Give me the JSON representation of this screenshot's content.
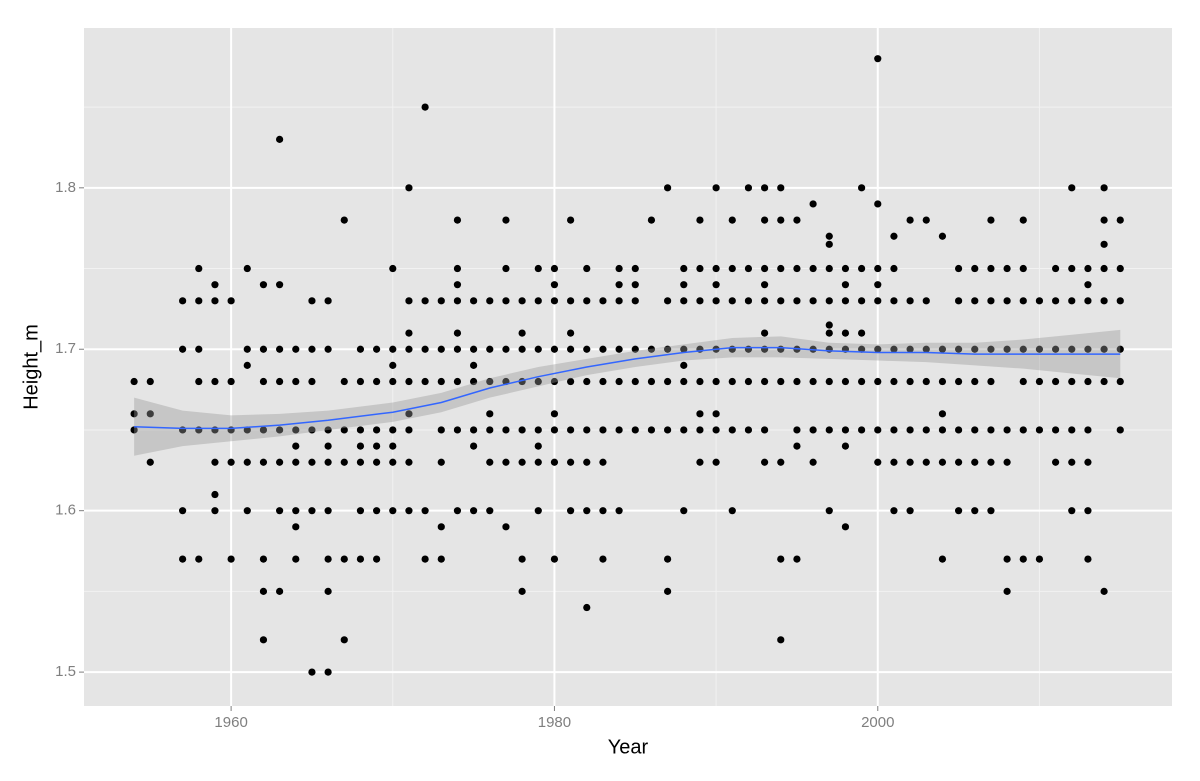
{
  "chart_data": {
    "type": "scatter",
    "x_label": "Year",
    "y_label": "Height_m",
    "xlim": [
      1950.9,
      2018.2
    ],
    "ylim": [
      1.479,
      1.899
    ],
    "xticks": [
      1960,
      1980,
      2000
    ],
    "yticks": [
      1.5,
      1.6,
      1.7,
      1.8
    ],
    "xminor": [
      1970,
      1990,
      2010
    ],
    "yminor": [
      1.55,
      1.65,
      1.75,
      1.85
    ],
    "grid": true,
    "color": "#000000",
    "x": [
      1954,
      1954,
      1954,
      1955,
      1955,
      1955,
      1957,
      1957,
      1957,
      1957,
      1957,
      1958,
      1958,
      1958,
      1958,
      1958,
      1958,
      1959,
      1959,
      1959,
      1959,
      1959,
      1959,
      1959,
      1960,
      1960,
      1960,
      1960,
      1960,
      1961,
      1961,
      1961,
      1961,
      1961,
      1961,
      1962,
      1962,
      1962,
      1962,
      1962,
      1962,
      1962,
      1962,
      1963,
      1963,
      1963,
      1963,
      1963,
      1963,
      1963,
      1963,
      1964,
      1964,
      1964,
      1964,
      1964,
      1964,
      1964,
      1964,
      1965,
      1965,
      1965,
      1965,
      1965,
      1965,
      1965,
      1966,
      1966,
      1966,
      1966,
      1966,
      1966,
      1966,
      1966,
      1966,
      1967,
      1967,
      1967,
      1967,
      1967,
      1967,
      1968,
      1968,
      1968,
      1968,
      1968,
      1968,
      1968,
      1969,
      1969,
      1969,
      1969,
      1969,
      1969,
      1969,
      1970,
      1970,
      1970,
      1970,
      1970,
      1970,
      1970,
      1970,
      1971,
      1971,
      1971,
      1971,
      1971,
      1971,
      1971,
      1971,
      1971,
      1972,
      1972,
      1972,
      1972,
      1972,
      1972,
      1973,
      1973,
      1973,
      1973,
      1973,
      1973,
      1973,
      1974,
      1974,
      1974,
      1974,
      1974,
      1974,
      1974,
      1974,
      1974,
      1975,
      1975,
      1975,
      1975,
      1975,
      1975,
      1975,
      1976,
      1976,
      1976,
      1976,
      1976,
      1976,
      1976,
      1977,
      1977,
      1977,
      1977,
      1977,
      1977,
      1977,
      1977,
      1978,
      1978,
      1978,
      1978,
      1978,
      1978,
      1978,
      1978,
      1979,
      1979,
      1979,
      1979,
      1979,
      1979,
      1979,
      1979,
      1980,
      1980,
      1980,
      1980,
      1980,
      1980,
      1980,
      1980,
      1980,
      1981,
      1981,
      1981,
      1981,
      1981,
      1981,
      1981,
      1981,
      1982,
      1982,
      1982,
      1982,
      1982,
      1982,
      1982,
      1982,
      1983,
      1983,
      1983,
      1983,
      1983,
      1983,
      1983,
      1984,
      1984,
      1984,
      1984,
      1984,
      1984,
      1984,
      1985,
      1985,
      1985,
      1985,
      1985,
      1985,
      1986,
      1986,
      1986,
      1986,
      1987,
      1987,
      1987,
      1987,
      1987,
      1987,
      1987,
      1988,
      1988,
      1988,
      1988,
      1988,
      1988,
      1988,
      1988,
      1989,
      1989,
      1989,
      1989,
      1989,
      1989,
      1989,
      1989,
      1990,
      1990,
      1990,
      1990,
      1990,
      1990,
      1990,
      1990,
      1990,
      1991,
      1991,
      1991,
      1991,
      1991,
      1991,
      1991,
      1992,
      1992,
      1992,
      1992,
      1992,
      1992,
      1993,
      1993,
      1993,
      1993,
      1993,
      1993,
      1993,
      1993,
      1993,
      1993,
      1994,
      1994,
      1994,
      1994,
      1994,
      1994,
      1994,
      1994,
      1994,
      1995,
      1995,
      1995,
      1995,
      1995,
      1995,
      1995,
      1995,
      1996,
      1996,
      1996,
      1996,
      1996,
      1996,
      1996,
      1997,
      1997,
      1997,
      1997,
      1997,
      1997,
      1997,
      1997,
      1997,
      1997,
      1998,
      1998,
      1998,
      1998,
      1998,
      1998,
      1998,
      1998,
      1998,
      1999,
      1999,
      1999,
      1999,
      1999,
      1999,
      1999,
      2000,
      2000,
      2000,
      2000,
      2000,
      2000,
      2000,
      2000,
      2000,
      2001,
      2001,
      2001,
      2001,
      2001,
      2001,
      2001,
      2001,
      2002,
      2002,
      2002,
      2002,
      2002,
      2002,
      2002,
      2003,
      2003,
      2003,
      2003,
      2003,
      2003,
      2004,
      2004,
      2004,
      2004,
      2004,
      2004,
      2004,
      2005,
      2005,
      2005,
      2005,
      2005,
      2005,
      2005,
      2006,
      2006,
      2006,
      2006,
      2006,
      2006,
      2006,
      2007,
      2007,
      2007,
      2007,
      2007,
      2007,
      2007,
      2007,
      2008,
      2008,
      2008,
      2008,
      2008,
      2008,
      2008,
      2009,
      2009,
      2009,
      2009,
      2009,
      2009,
      2009,
      2010,
      2010,
      2010,
      2010,
      2010,
      2011,
      2011,
      2011,
      2011,
      2011,
      2011,
      2012,
      2012,
      2012,
      2012,
      2012,
      2012,
      2012,
      2012,
      2013,
      2013,
      2013,
      2013,
      2013,
      2013,
      2013,
      2013,
      2013,
      2014,
      2014,
      2014,
      2014,
      2014,
      2014,
      2014,
      2014,
      2015,
      2015,
      2015,
      2015,
      2015,
      2015
    ],
    "values": [
      1.68,
      1.66,
      1.65,
      1.68,
      1.66,
      1.63,
      1.73,
      1.7,
      1.65,
      1.6,
      1.57,
      1.75,
      1.73,
      1.7,
      1.68,
      1.65,
      1.57,
      1.74,
      1.73,
      1.68,
      1.65,
      1.63,
      1.61,
      1.6,
      1.73,
      1.68,
      1.65,
      1.63,
      1.57,
      1.75,
      1.7,
      1.69,
      1.65,
      1.63,
      1.6,
      1.74,
      1.7,
      1.68,
      1.65,
      1.63,
      1.57,
      1.55,
      1.52,
      1.83,
      1.74,
      1.7,
      1.68,
      1.65,
      1.63,
      1.6,
      1.55,
      1.7,
      1.68,
      1.65,
      1.64,
      1.63,
      1.6,
      1.59,
      1.57,
      1.73,
      1.7,
      1.68,
      1.65,
      1.63,
      1.6,
      1.5,
      1.73,
      1.7,
      1.65,
      1.64,
      1.63,
      1.6,
      1.57,
      1.55,
      1.5,
      1.78,
      1.68,
      1.65,
      1.63,
      1.57,
      1.52,
      1.7,
      1.68,
      1.65,
      1.64,
      1.63,
      1.6,
      1.57,
      1.7,
      1.68,
      1.65,
      1.64,
      1.63,
      1.6,
      1.57,
      1.75,
      1.7,
      1.69,
      1.68,
      1.65,
      1.64,
      1.63,
      1.6,
      1.8,
      1.73,
      1.71,
      1.7,
      1.68,
      1.66,
      1.65,
      1.63,
      1.6,
      1.85,
      1.73,
      1.7,
      1.68,
      1.6,
      1.57,
      1.73,
      1.7,
      1.68,
      1.65,
      1.63,
      1.59,
      1.57,
      1.78,
      1.75,
      1.74,
      1.73,
      1.71,
      1.7,
      1.68,
      1.65,
      1.6,
      1.73,
      1.7,
      1.69,
      1.68,
      1.65,
      1.64,
      1.6,
      1.73,
      1.7,
      1.68,
      1.66,
      1.65,
      1.63,
      1.6,
      1.78,
      1.75,
      1.73,
      1.7,
      1.68,
      1.65,
      1.63,
      1.59,
      1.73,
      1.71,
      1.7,
      1.68,
      1.65,
      1.63,
      1.57,
      1.55,
      1.75,
      1.73,
      1.7,
      1.68,
      1.65,
      1.64,
      1.63,
      1.6,
      1.75,
      1.74,
      1.73,
      1.7,
      1.68,
      1.66,
      1.65,
      1.63,
      1.57,
      1.78,
      1.73,
      1.71,
      1.7,
      1.68,
      1.65,
      1.63,
      1.6,
      1.75,
      1.73,
      1.7,
      1.68,
      1.65,
      1.63,
      1.6,
      1.54,
      1.73,
      1.7,
      1.68,
      1.65,
      1.63,
      1.6,
      1.57,
      1.75,
      1.74,
      1.73,
      1.7,
      1.68,
      1.65,
      1.6,
      1.75,
      1.74,
      1.73,
      1.7,
      1.68,
      1.65,
      1.78,
      1.7,
      1.68,
      1.65,
      1.8,
      1.73,
      1.7,
      1.68,
      1.65,
      1.57,
      1.55,
      1.75,
      1.74,
      1.73,
      1.7,
      1.69,
      1.68,
      1.65,
      1.6,
      1.78,
      1.75,
      1.73,
      1.7,
      1.68,
      1.66,
      1.65,
      1.63,
      1.8,
      1.75,
      1.74,
      1.73,
      1.7,
      1.68,
      1.66,
      1.65,
      1.63,
      1.78,
      1.75,
      1.73,
      1.7,
      1.68,
      1.65,
      1.6,
      1.8,
      1.75,
      1.73,
      1.7,
      1.68,
      1.65,
      1.8,
      1.78,
      1.75,
      1.74,
      1.73,
      1.71,
      1.7,
      1.68,
      1.65,
      1.63,
      1.8,
      1.78,
      1.75,
      1.73,
      1.7,
      1.68,
      1.63,
      1.57,
      1.52,
      1.78,
      1.75,
      1.73,
      1.7,
      1.68,
      1.65,
      1.64,
      1.57,
      1.79,
      1.75,
      1.73,
      1.7,
      1.68,
      1.65,
      1.63,
      1.77,
      1.765,
      1.75,
      1.73,
      1.715,
      1.71,
      1.7,
      1.68,
      1.65,
      1.6,
      1.75,
      1.74,
      1.73,
      1.71,
      1.7,
      1.68,
      1.65,
      1.64,
      1.59,
      1.8,
      1.75,
      1.73,
      1.71,
      1.7,
      1.68,
      1.65,
      1.88,
      1.79,
      1.75,
      1.74,
      1.73,
      1.7,
      1.68,
      1.65,
      1.63,
      1.77,
      1.75,
      1.73,
      1.7,
      1.68,
      1.65,
      1.63,
      1.6,
      1.78,
      1.73,
      1.7,
      1.68,
      1.65,
      1.63,
      1.6,
      1.78,
      1.73,
      1.7,
      1.68,
      1.65,
      1.63,
      1.77,
      1.7,
      1.68,
      1.66,
      1.65,
      1.63,
      1.57,
      1.75,
      1.73,
      1.7,
      1.68,
      1.65,
      1.63,
      1.6,
      1.75,
      1.73,
      1.7,
      1.68,
      1.65,
      1.63,
      1.6,
      1.78,
      1.75,
      1.73,
      1.7,
      1.68,
      1.65,
      1.63,
      1.6,
      1.75,
      1.73,
      1.7,
      1.65,
      1.63,
      1.57,
      1.55,
      1.78,
      1.75,
      1.73,
      1.7,
      1.68,
      1.65,
      1.57,
      1.73,
      1.7,
      1.68,
      1.65,
      1.57,
      1.75,
      1.73,
      1.7,
      1.68,
      1.65,
      1.63,
      1.8,
      1.75,
      1.73,
      1.7,
      1.68,
      1.65,
      1.63,
      1.6,
      1.75,
      1.74,
      1.73,
      1.7,
      1.68,
      1.65,
      1.63,
      1.6,
      1.57,
      1.8,
      1.78,
      1.765,
      1.75,
      1.73,
      1.7,
      1.68,
      1.55,
      1.78,
      1.75,
      1.73,
      1.7,
      1.68,
      1.65
    ],
    "smooth": {
      "color": "#3366ff",
      "band_color": "#999999",
      "x": [
        1954,
        1957,
        1960,
        1963,
        1966,
        1970,
        1973,
        1976,
        1979,
        1982,
        1985,
        1988,
        1991,
        1994,
        1997,
        2000,
        2003,
        2006,
        2009,
        2012,
        2015
      ],
      "values": [
        1.652,
        1.651,
        1.651,
        1.653,
        1.656,
        1.661,
        1.667,
        1.676,
        1.683,
        1.689,
        1.694,
        1.698,
        1.701,
        1.701,
        1.699,
        1.698,
        1.698,
        1.697,
        1.697,
        1.697,
        1.697
      ],
      "lower": [
        1.634,
        1.64,
        1.643,
        1.646,
        1.65,
        1.655,
        1.661,
        1.67,
        1.677,
        1.684,
        1.689,
        1.693,
        1.695,
        1.695,
        1.694,
        1.693,
        1.692,
        1.69,
        1.688,
        1.685,
        1.682
      ],
      "upper": [
        1.67,
        1.662,
        1.659,
        1.66,
        1.662,
        1.667,
        1.673,
        1.682,
        1.689,
        1.694,
        1.699,
        1.703,
        1.707,
        1.708,
        1.704,
        1.703,
        1.704,
        1.704,
        1.706,
        1.709,
        1.712
      ]
    }
  }
}
